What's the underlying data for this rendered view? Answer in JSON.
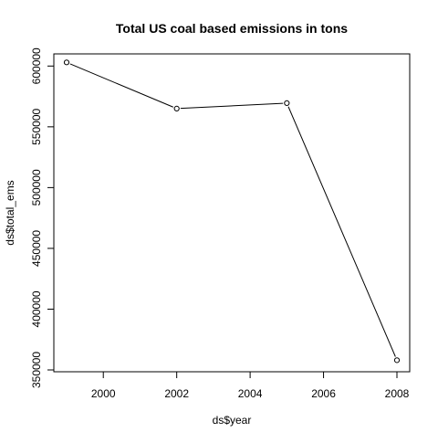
{
  "chart_data": {
    "type": "line",
    "title": "Total US coal based emissions in tons",
    "xlabel": "ds$year",
    "ylabel": "ds$total_ems",
    "x": [
      1999,
      2002,
      2005,
      2008
    ],
    "y": [
      603000,
      565000,
      569500,
      358000
    ],
    "xlim": [
      1999,
      2008
    ],
    "ylim": [
      350000,
      610000
    ],
    "xticks": [
      2000,
      2002,
      2004,
      2006,
      2008
    ],
    "yticks": [
      350000,
      400000,
      450000,
      500000,
      550000,
      600000
    ],
    "xtick_labels": [
      "2000",
      "2002",
      "2004",
      "2006",
      "2008"
    ],
    "ytick_labels": [
      "350000",
      "400000",
      "450000",
      "500000",
      "550000",
      "600000"
    ],
    "grid": false,
    "legend": "none",
    "line_color": "#000000",
    "marker": "open-circle"
  }
}
